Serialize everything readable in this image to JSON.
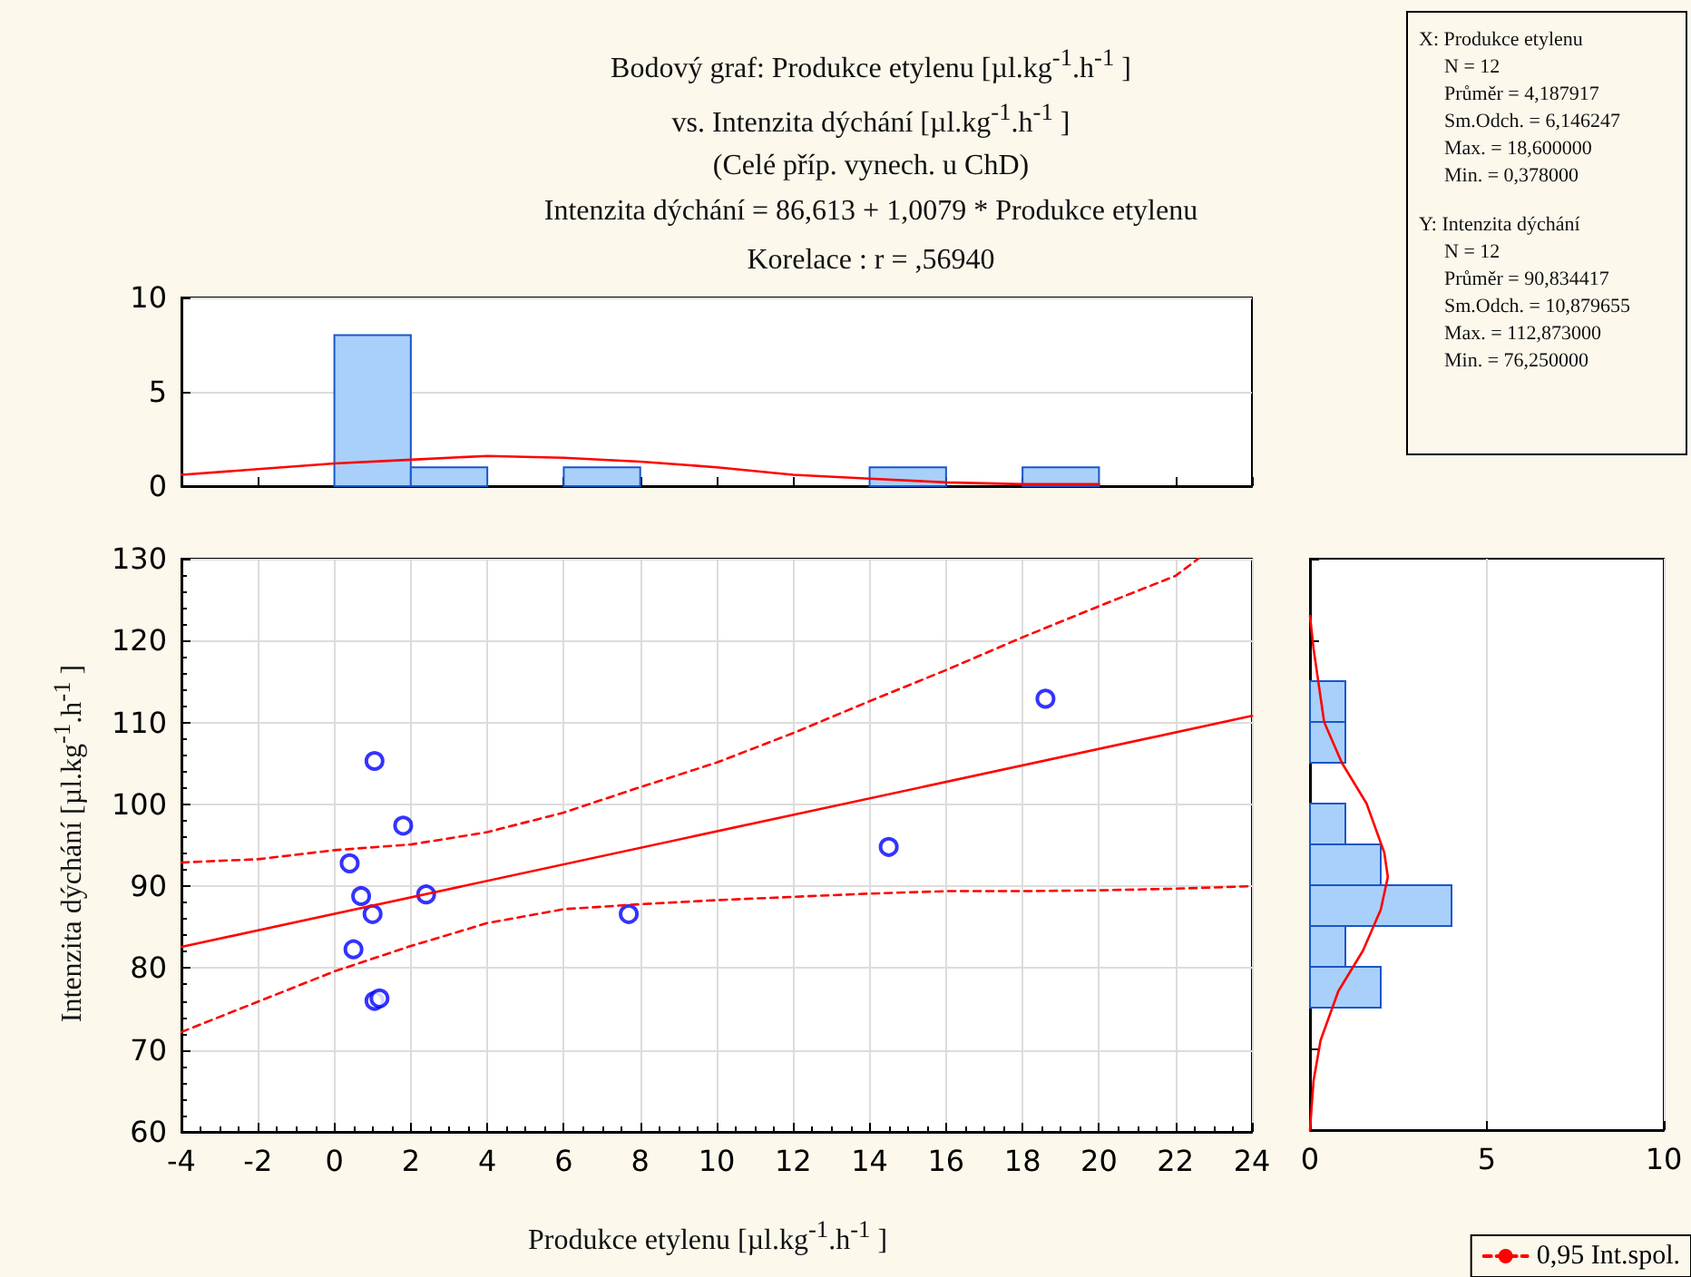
{
  "chart_data": [
    {
      "type": "histogram",
      "title": "Bodový graf: Produkce etylenu [µl.kg$^{-1}$.h$^{-1}$ ]\nvs. Intenzita dýchání [µl.kg$^{-1}$.h$^{-1}$ ]",
      "subtitle": "(Celé příp. vynech. u ChD)",
      "annotations": [
        "Intenzita dýchání = 86,613 + 1,0079 * Produkce etylenu",
        "Korelace :   r = ,56940"
      ],
      "xlim": [
        -4,
        24
      ],
      "xticks": [
        -4,
        -2,
        0,
        2,
        4,
        6,
        8,
        10,
        12,
        14,
        16,
        18,
        20,
        22,
        24
      ],
      "ylim": [
        0,
        10
      ],
      "yticks": [
        0,
        5,
        10
      ],
      "grid": "y",
      "tick_labels": "y",
      "series": [
        {
          "type": "histogram",
          "color": "#a8d0fa",
          "bins": [
            0,
            2,
            4,
            6,
            8,
            10,
            12,
            14,
            16,
            18,
            20
          ],
          "values": [
            8,
            1,
            0,
            1,
            0,
            0,
            0,
            1,
            0,
            1
          ]
        },
        {
          "type": "line",
          "color": "#ff0000",
          "x": [
            -4,
            0,
            2,
            4,
            6,
            8,
            10,
            12,
            14,
            16,
            18,
            20
          ],
          "values": [
            0.6,
            1.2,
            1.4,
            1.6,
            1.5,
            1.3,
            1.0,
            0.6,
            0.4,
            0.2,
            0.1,
            0.1
          ]
        }
      ]
    },
    {
      "type": "other",
      "annotations": [
        "X:  Produkce etylenu",
        "N = 12",
        "Průměr = 4,187917",
        "Sm.Odch. = 6,146247",
        "Max. = 18,600000",
        "Min. = 0,378000",
        "Y:  Intenzita dýchání",
        "N = 12",
        "Průměr = 90,834417",
        "Sm.Odch. = 10,879655",
        "Max. = 112,873000",
        "Min. = 76,250000"
      ]
    },
    {
      "type": "scatter",
      "xlabel": "Produkce etylenu [µl.kg$^{-1}$.h$^{-1}$ ]",
      "ylabel": "Intenzita dýchání [µl.kg$^{-1}$.h$^{-1}$ ]",
      "xlim": [
        -4,
        24
      ],
      "xticks": [
        -4,
        -2,
        0,
        2,
        4,
        6,
        8,
        10,
        12,
        14,
        16,
        18,
        20,
        22,
        24
      ],
      "ylim": [
        60,
        130
      ],
      "yticks": [
        60,
        70,
        80,
        90,
        100,
        110,
        120,
        130
      ],
      "grid": true,
      "legend": "bottom right",
      "series": [
        {
          "type": "scatter",
          "color": "#0000ff",
          "marker": "circle",
          "x": [
            1.05,
            1.8,
            0.4,
            0.7,
            2.4,
            1.0,
            0.5,
            1.05,
            1.18,
            7.7,
            14.5,
            18.6
          ],
          "values": [
            105.3,
            97.4,
            92.8,
            88.8,
            89.0,
            86.6,
            82.3,
            76.0,
            76.3,
            86.6,
            94.8,
            112.9
          ]
        },
        {
          "type": "line",
          "color": "#ff0000",
          "x": [
            -4,
            24
          ],
          "values": [
            82.6,
            110.8
          ]
        },
        {
          "type": "line",
          "name": "0,95 Int.spol.",
          "color": "#ff0000",
          "line_style": "dashed",
          "x": [
            -4,
            -2,
            0,
            2,
            4,
            6,
            8,
            10,
            12,
            14,
            16,
            18,
            20,
            22,
            22.6
          ],
          "values": [
            92.9,
            93.3,
            94.4,
            95.1,
            96.6,
            99.0,
            102.1,
            105.1,
            108.7,
            112.6,
            116.4,
            120.4,
            124.2,
            127.9,
            130
          ]
        },
        {
          "type": "line",
          "color": "#ff0000",
          "line_style": "dashed",
          "x": [
            -4,
            -2,
            0,
            2,
            4,
            6,
            8,
            10,
            12,
            14,
            16,
            18,
            20,
            22,
            24
          ],
          "values": [
            72.2,
            75.9,
            79.6,
            82.7,
            85.5,
            87.2,
            87.8,
            88.3,
            88.7,
            89.1,
            89.4,
            89.4,
            89.5,
            89.7,
            90.0
          ]
        }
      ]
    },
    {
      "type": "histogram",
      "orientation": "horizontal",
      "xlim": [
        0,
        10
      ],
      "xticks": [
        0,
        5,
        10
      ],
      "ylim": [
        60,
        130
      ],
      "yticks": [
        60,
        70,
        80,
        90,
        100,
        110,
        120,
        130
      ],
      "grid": "x",
      "tick_labels": "x",
      "series": [
        {
          "type": "histogram",
          "color": "#a8d0fa",
          "bins": [
            75,
            80,
            85,
            90,
            95,
            100,
            105,
            110,
            115
          ],
          "values": [
            2,
            1,
            4,
            2,
            1,
            0,
            1,
            1
          ]
        },
        {
          "type": "line",
          "color": "#ff0000",
          "x": [
            123,
            119,
            110,
            105,
            100,
            94,
            91,
            87,
            82,
            77,
            71,
            66,
            60
          ],
          "values": [
            0,
            0.1,
            0.4,
            0.9,
            1.6,
            2.1,
            2.2,
            2.0,
            1.5,
            0.8,
            0.3,
            0.1,
            0
          ]
        }
      ]
    }
  ]
}
